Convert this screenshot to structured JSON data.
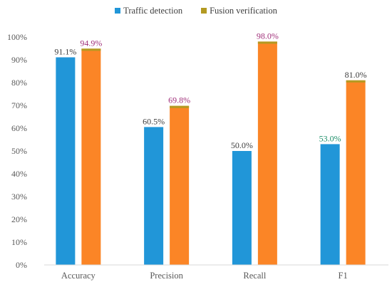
{
  "chart_data": {
    "type": "bar",
    "categories": [
      "Accuracy",
      "Precision",
      "Recall",
      "F1"
    ],
    "series": [
      {
        "name": "Traffic detection",
        "values": [
          91.1,
          60.5,
          50.0,
          53.0
        ],
        "labels": [
          "91.1%",
          "60.5%",
          "50.0%",
          "53.0%"
        ],
        "color": "#2196d8",
        "label_colors": [
          "#3d3d3d",
          "#3d3d3d",
          "#3d3d3d",
          "#1e8f6a"
        ]
      },
      {
        "name": "Fusion verification",
        "values": [
          94.9,
          69.8,
          98.0,
          81.0
        ],
        "labels": [
          "94.9%",
          "69.8%",
          "98.0%",
          "81.0%"
        ],
        "color": "#fb8526",
        "legend_color": "#b39a22",
        "label_colors": [
          "#a0307a",
          "#a0307a",
          "#a0307a",
          "#3d3d3d"
        ]
      }
    ],
    "ylim": [
      0,
      100
    ],
    "yticks": [
      "0%",
      "10%",
      "20%",
      "30%",
      "40%",
      "50%",
      "60%",
      "70%",
      "80%",
      "90%",
      "100%"
    ],
    "ytick_values": [
      0,
      10,
      20,
      30,
      40,
      50,
      60,
      70,
      80,
      90,
      100
    ],
    "grid": false,
    "legend": "top-center",
    "title": "",
    "xlabel": "",
    "ylabel": ""
  }
}
